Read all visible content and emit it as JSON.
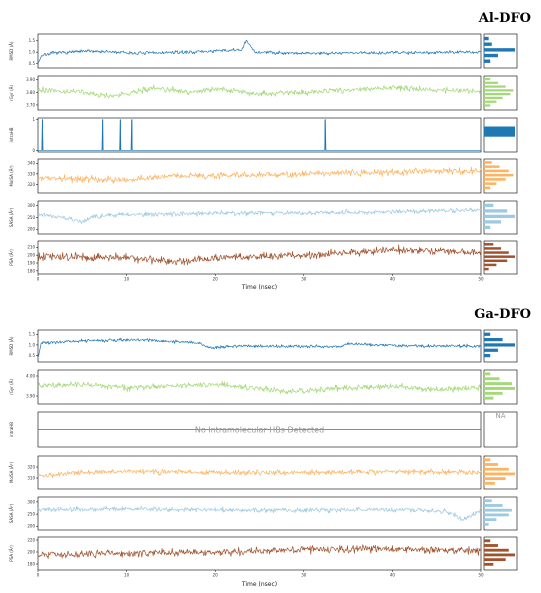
{
  "chart_data": [
    {
      "type": "line",
      "title": "Al-DFO",
      "xlabel": "Time (nsec)",
      "xlim": [
        0,
        50
      ],
      "x_ticks": [
        "0",
        "10",
        "20",
        "30",
        "40",
        "50"
      ],
      "panels": [
        {
          "ylabel": "RMSD (Å)",
          "color": "#1f77b4",
          "yticks": [
            "1.5",
            "1.0",
            "0.5"
          ],
          "ylim": [
            0.3,
            1.8
          ],
          "noise": 0.06,
          "segments": [
            [
              0,
              0.5
            ],
            [
              0.4,
              0.85
            ],
            [
              1.5,
              0.95
            ],
            [
              6,
              1.05
            ],
            [
              11,
              0.95
            ],
            [
              17,
              1.0
            ],
            [
              23,
              1.1
            ],
            [
              23.5,
              1.5
            ],
            [
              24.5,
              1.0
            ],
            [
              30,
              0.95
            ],
            [
              40,
              0.98
            ],
            [
              50,
              1.0
            ]
          ],
          "spikes": [],
          "hist": [
            0.15,
            0.25,
            1.0,
            0.45,
            0.2
          ]
        },
        {
          "ylabel": "rGyr (Å)",
          "color": "#a3d977",
          "yticks": [
            "3.90",
            "3.80",
            "3.70"
          ],
          "ylim": [
            3.66,
            3.93
          ],
          "noise": 0.018,
          "segments": [
            [
              0,
              3.82
            ],
            [
              5,
              3.8
            ],
            [
              8,
              3.77
            ],
            [
              11,
              3.8
            ],
            [
              13,
              3.84
            ],
            [
              17,
              3.8
            ],
            [
              20,
              3.83
            ],
            [
              25,
              3.79
            ],
            [
              30,
              3.8
            ],
            [
              35,
              3.82
            ],
            [
              40,
              3.84
            ],
            [
              45,
              3.82
            ],
            [
              50,
              3.81
            ]
          ],
          "spikes": [],
          "hist": [
            0.2,
            0.45,
            0.7,
            0.95,
            0.85,
            0.6,
            0.4,
            0.2
          ]
        },
        {
          "ylabel": "intraHB",
          "color": "#1f77b4",
          "yticks": [
            "1",
            "0"
          ],
          "ylim": [
            -0.05,
            1.05
          ],
          "noise": 0,
          "segments": [
            [
              0,
              0
            ],
            [
              50,
              0
            ]
          ],
          "spikes": [
            0.5,
            7.3,
            9.3,
            10.6,
            32.4
          ],
          "hist": [
            1.0
          ]
        },
        {
          "ylabel": "MolSA (Å²)",
          "color": "#fdb462",
          "yticks": [
            "340",
            "330",
            "320"
          ],
          "ylim": [
            312,
            344
          ],
          "noise": 2.5,
          "segments": [
            [
              0,
              326
            ],
            [
              10,
              324
            ],
            [
              15,
              328
            ],
            [
              25,
              329
            ],
            [
              30,
              330
            ],
            [
              40,
              332
            ],
            [
              50,
              333
            ]
          ],
          "spikes": [],
          "hist": [
            0.25,
            0.5,
            0.8,
            0.95,
            0.7,
            0.4,
            0.2
          ]
        },
        {
          "ylabel": "SASA (Å²)",
          "color": "#9ecae1",
          "yticks": [
            "300",
            "250",
            "200"
          ],
          "ylim": [
            180,
            320
          ],
          "noise": 8,
          "segments": [
            [
              0,
              265
            ],
            [
              3,
              250
            ],
            [
              5,
              230
            ],
            [
              6,
              255
            ],
            [
              10,
              262
            ],
            [
              20,
              268
            ],
            [
              30,
              270
            ],
            [
              40,
              275
            ],
            [
              50,
              282
            ]
          ],
          "spikes": [],
          "hist": [
            0.3,
            0.75,
            1.0,
            0.55,
            0.2
          ]
        },
        {
          "ylabel": "PSA (Å²)",
          "color": "#a0522d",
          "yticks": [
            "210",
            "200",
            "190",
            "180"
          ],
          "ylim": [
            176,
            218
          ],
          "noise": 4,
          "segments": [
            [
              0,
              198
            ],
            [
              10,
              197
            ],
            [
              15,
              192
            ],
            [
              20,
              196
            ],
            [
              25,
              198
            ],
            [
              35,
              203
            ],
            [
              40,
              207
            ],
            [
              45,
              205
            ],
            [
              50,
              203
            ]
          ],
          "spikes": [],
          "hist": [
            0.3,
            0.55,
            0.8,
            1.0,
            0.75,
            0.4,
            0.15
          ]
        }
      ]
    },
    {
      "type": "line",
      "title": "Ga-DFO",
      "xlabel": "Time (nsec)",
      "xlim": [
        0,
        50
      ],
      "x_ticks": [
        "0",
        "10",
        "20",
        "30",
        "40",
        "50"
      ],
      "panels": [
        {
          "ylabel": "RMSD (Å)",
          "color": "#1f77b4",
          "yticks": [
            "1.5",
            "1.0",
            "0.5"
          ],
          "ylim": [
            0.2,
            1.7
          ],
          "noise": 0.06,
          "segments": [
            [
              0,
              0.4
            ],
            [
              0.4,
              1.1
            ],
            [
              5,
              1.2
            ],
            [
              12,
              1.25
            ],
            [
              18,
              1.1
            ],
            [
              19.5,
              0.85
            ],
            [
              22,
              0.95
            ],
            [
              34,
              0.92
            ],
            [
              35,
              1.05
            ],
            [
              42,
              0.95
            ],
            [
              50,
              0.95
            ]
          ],
          "spikes": [],
          "hist": [
            0.2,
            0.6,
            1.0,
            0.45,
            0.2
          ]
        },
        {
          "ylabel": "rGyr (Å)",
          "color": "#a3d977",
          "yticks": [
            "4.00",
            "3.90"
          ],
          "ylim": [
            3.86,
            4.03
          ],
          "noise": 0.012,
          "segments": [
            [
              0,
              3.95
            ],
            [
              5,
              3.96
            ],
            [
              10,
              3.94
            ],
            [
              20,
              3.96
            ],
            [
              25,
              3.94
            ],
            [
              28,
              3.92
            ],
            [
              35,
              3.94
            ],
            [
              40,
              3.95
            ],
            [
              45,
              3.93
            ],
            [
              50,
              3.94
            ]
          ],
          "spikes": [],
          "hist": [
            0.2,
            0.5,
            0.9,
            1.0,
            0.6,
            0.3
          ]
        },
        {
          "ylabel": "intraHB",
          "color": "#1f77b4",
          "yticks": [],
          "ylim": [
            -1,
            1
          ],
          "noise": 0,
          "segments": [
            [
              0,
              0
            ],
            [
              50,
              0
            ]
          ],
          "spikes": [],
          "hist": []
        },
        {
          "ylabel": "MolSA (Å²)",
          "color": "#fdb462",
          "yticks": [
            "320",
            "310"
          ],
          "ylim": [
            300,
            330
          ],
          "noise": 2,
          "segments": [
            [
              0,
              312
            ],
            [
              5,
              315
            ],
            [
              10,
              316
            ],
            [
              20,
              315
            ],
            [
              30,
              315
            ],
            [
              40,
              316
            ],
            [
              50,
              315
            ]
          ],
          "spikes": [],
          "hist": [
            0.2,
            0.45,
            0.8,
            1.0,
            0.7,
            0.35
          ]
        },
        {
          "ylabel": "SASA (Å²)",
          "color": "#9ecae1",
          "yticks": [
            "300",
            "250",
            "200"
          ],
          "ylim": [
            185,
            320
          ],
          "noise": 8,
          "segments": [
            [
              0,
              268
            ],
            [
              10,
              272
            ],
            [
              20,
              268
            ],
            [
              30,
              265
            ],
            [
              40,
              270
            ],
            [
              46,
              262
            ],
            [
              48,
              225
            ],
            [
              50,
              268
            ]
          ],
          "spikes": [],
          "hist": [
            0.25,
            0.6,
            0.9,
            0.8,
            0.4,
            0.15
          ]
        },
        {
          "ylabel": "PSA (Å²)",
          "color": "#a0522d",
          "yticks": [
            "220",
            "200",
            "180"
          ],
          "ylim": [
            170,
            225
          ],
          "noise": 5,
          "segments": [
            [
              0,
              195
            ],
            [
              10,
              198
            ],
            [
              20,
              200
            ],
            [
              30,
              204
            ],
            [
              40,
              205
            ],
            [
              50,
              202
            ]
          ],
          "spikes": [],
          "hist": [
            0.2,
            0.45,
            0.8,
            1.0,
            0.7,
            0.3
          ]
        }
      ],
      "note": "No Intramolecular HBs Detected",
      "na_label": "NA"
    }
  ]
}
